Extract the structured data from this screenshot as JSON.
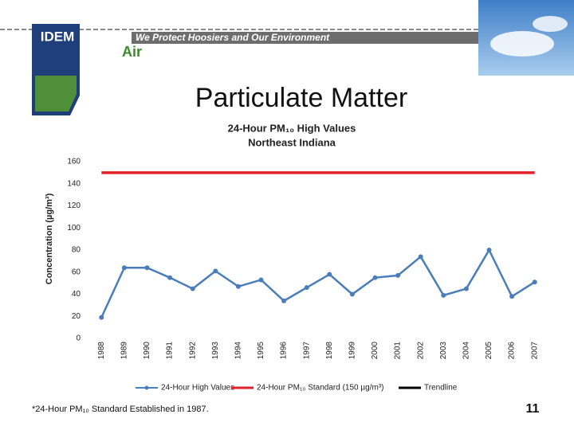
{
  "header": {
    "logo": "IDEM",
    "slogan": "We Protect Hoosiers and Our Environment",
    "section": "Air"
  },
  "slide_title": "Particulate Matter",
  "chart_data": {
    "type": "line",
    "title": "24-Hour PM₁₀ High Values",
    "subtitle": "Northeast Indiana",
    "y_label": "Concentration (µg/m³)",
    "categories": [
      "1988",
      "1989",
      "1990",
      "1991",
      "1992",
      "1993",
      "1994",
      "1995",
      "1996",
      "1997",
      "1998",
      "1999",
      "2000",
      "2001",
      "2002",
      "2003",
      "2004",
      "2005",
      "2006",
      "2007"
    ],
    "series": [
      {
        "name": "24-Hour High Values",
        "color": "#4a7ebb",
        "marker": true,
        "values": [
          19,
          64,
          64,
          55,
          45,
          61,
          47,
          53,
          34,
          46,
          58,
          40,
          55,
          57,
          74,
          39,
          45,
          80,
          38,
          51
        ]
      },
      {
        "name": "24-Hour PM₁₀ Standard (150 µg/m³)",
        "color": "#e0202a",
        "marker": false,
        "values": [
          150,
          150,
          150,
          150,
          150,
          150,
          150,
          150,
          150,
          150,
          150,
          150,
          150,
          150,
          150,
          150,
          150,
          150,
          150,
          150
        ]
      },
      {
        "name": "Trendline",
        "color": "#000000",
        "marker": false,
        "values": [
          null,
          null,
          null,
          null,
          null,
          null,
          null,
          null,
          null,
          null,
          null,
          null,
          null,
          null,
          null,
          null,
          null,
          null,
          null,
          null
        ]
      }
    ],
    "ylim": [
      0,
      160
    ],
    "yticks": [
      0,
      20,
      40,
      60,
      80,
      100,
      120,
      140,
      160
    ],
    "grid": false,
    "legend": "bottom"
  },
  "footnote": "*24-Hour PM₁₀ Standard Established in 1987.",
  "page_number": "11"
}
